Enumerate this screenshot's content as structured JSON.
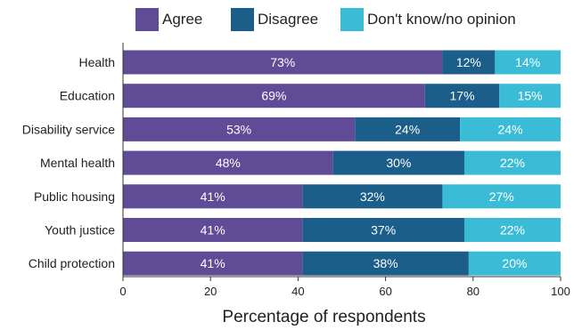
{
  "chart_data": {
    "type": "bar",
    "orientation": "horizontal",
    "stacked": true,
    "categories": [
      "Health",
      "Education",
      "Disability service",
      "Mental health",
      "Public housing",
      "Youth justice",
      "Child protection"
    ],
    "series": [
      {
        "name": "Agree",
        "color": "#5f4b96",
        "values": [
          73,
          69,
          53,
          48,
          41,
          41,
          41
        ]
      },
      {
        "name": "Disagree",
        "color": "#1b5e8a",
        "values": [
          12,
          17,
          24,
          30,
          32,
          37,
          38
        ]
      },
      {
        "name": "Don't know/no opinion",
        "color": "#3bbcd6",
        "values": [
          14,
          15,
          24,
          22,
          27,
          22,
          20
        ]
      }
    ],
    "xlabel": "Percentage of respondents",
    "ylabel": "",
    "xlim": [
      0,
      100
    ],
    "xticks": [
      0,
      20,
      40,
      60,
      80,
      100
    ],
    "legend_position": "top",
    "grid": false
  }
}
